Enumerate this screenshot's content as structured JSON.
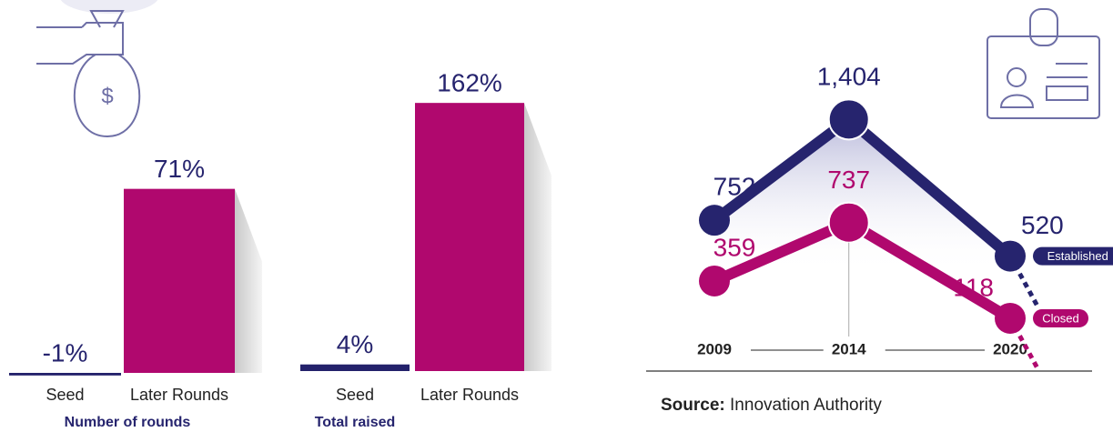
{
  "chart_data": [
    {
      "type": "bar",
      "categories": [
        "Seed",
        "Later Rounds"
      ],
      "values": [
        -1,
        71
      ],
      "value_labels": [
        "-1%",
        "71%"
      ],
      "xlabel": "Number of rounds",
      "colors": [
        "#23216b",
        "#b0086e"
      ]
    },
    {
      "type": "bar",
      "categories": [
        "Seed",
        "Later Rounds"
      ],
      "values": [
        4,
        162
      ],
      "value_labels": [
        "4%",
        "162%"
      ],
      "xlabel": "Total raised",
      "colors": [
        "#23216b",
        "#b0086e"
      ]
    },
    {
      "type": "line",
      "x": [
        2009,
        2014,
        2020
      ],
      "series": [
        {
          "name": "Established",
          "color": "#26246e",
          "values": [
            752,
            1404,
            520
          ],
          "value_labels": [
            "752",
            "1,404",
            "520"
          ]
        },
        {
          "name": "Closed",
          "color": "#b0086e",
          "values": [
            359,
            737,
            118
          ]
        }
      ]
    }
  ],
  "source": {
    "label": "Source:",
    "text": "Innovation Authority"
  }
}
